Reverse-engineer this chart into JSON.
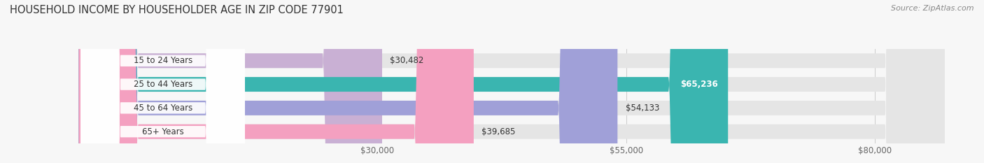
{
  "title": "HOUSEHOLD INCOME BY HOUSEHOLDER AGE IN ZIP CODE 77901",
  "source": "Source: ZipAtlas.com",
  "categories": [
    "15 to 24 Years",
    "25 to 44 Years",
    "45 to 64 Years",
    "65+ Years"
  ],
  "values": [
    30482,
    65236,
    54133,
    39685
  ],
  "bar_colors": [
    "#c9b0d4",
    "#3ab5b0",
    "#a0a0d8",
    "#f4a0c0"
  ],
  "label_colors": [
    "#444444",
    "#ffffff",
    "#444444",
    "#444444"
  ],
  "value_labels": [
    "$30,482",
    "$65,236",
    "$54,133",
    "$39,685"
  ],
  "x_ticks": [
    30000,
    55000,
    80000
  ],
  "x_tick_labels": [
    "$30,000",
    "$55,000",
    "$80,000"
  ],
  "xmin": 0,
  "xmax": 87000,
  "background_color": "#f7f7f7",
  "bar_background_color": "#e5e5e5",
  "title_fontsize": 10.5,
  "source_fontsize": 8,
  "tick_fontsize": 8.5,
  "label_fontsize": 8.5,
  "value_fontsize": 8.5,
  "bar_height": 0.62,
  "figsize": [
    14.06,
    2.33
  ]
}
